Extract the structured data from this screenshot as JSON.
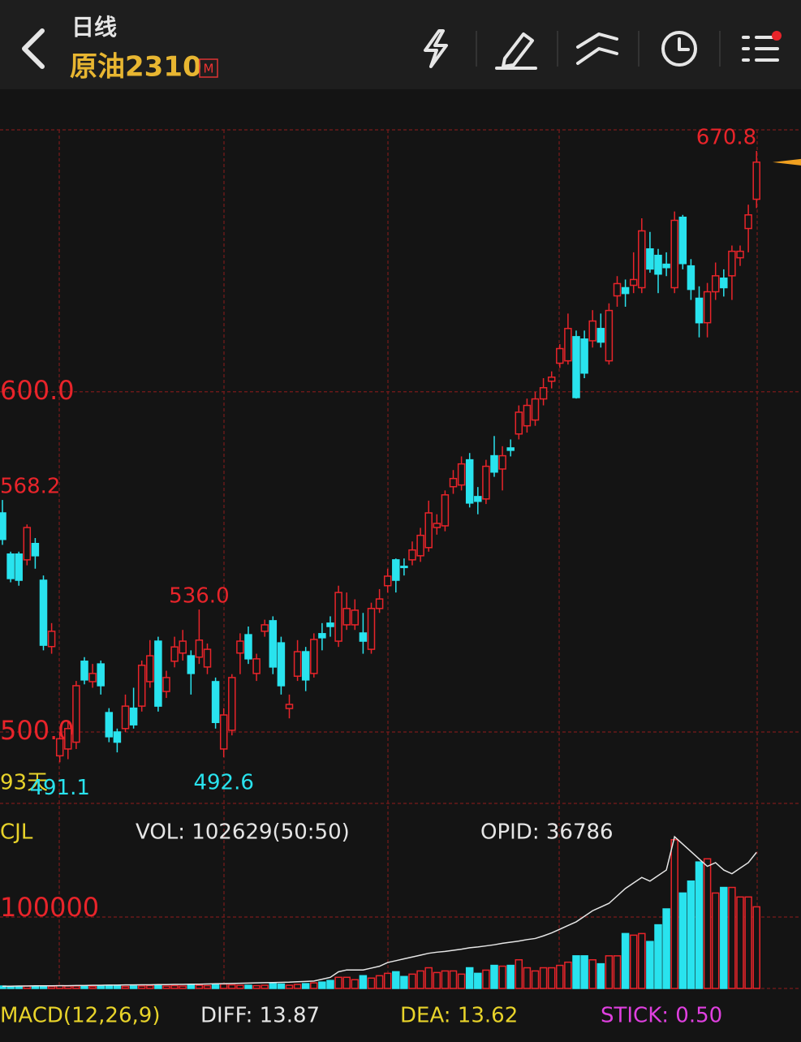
{
  "header": {
    "period": "日线",
    "symbol": "原油2310",
    "badge": "M"
  },
  "chart_data": [
    {
      "type": "candlestick",
      "period_label": "93天",
      "open": [
        564.4,
        552.3,
        552.3,
        550.6,
        555.4,
        544.6,
        525.1,
        493,
        495,
        497,
        520.8,
        514.8,
        520,
        505.7,
        500,
        501,
        507,
        507.6,
        514.8,
        526.7,
        511.9,
        520.8,
        523.2,
        522.4,
        522,
        519.1,
        514.8,
        495,
        500.5,
        523.2,
        528.6,
        517.2,
        529.6,
        532.7,
        526.2,
        506.9,
        516.4,
        523.6,
        517.2,
        528.9,
        532,
        526.7,
        531.5,
        531.5,
        529.1,
        524.3,
        536.3,
        543,
        550.6,
        548.7,
        550.6,
        551.8,
        554.2,
        560.1,
        560.6,
        572.1,
        572.6,
        580,
        569.2,
        568.5,
        581.2,
        577.3,
        583.5,
        587.6,
        590,
        591.7,
        597.9,
        603.1,
        608.4,
        609.1,
        616.2,
        615.5,
        615,
        618.6,
        609.1,
        628.2,
        630.6,
        631.3,
        630.6,
        642,
        640.1,
        637.5,
        630.6,
        651.3,
        637,
        627.5,
        620.3,
        629.4,
        633.4,
        634.1,
        639.4,
        648,
        656.6
      ],
      "high": [
        568.2,
        553,
        553,
        561,
        557,
        546,
        532,
        500,
        503,
        515,
        522,
        520,
        521,
        507,
        501,
        511,
        513,
        521,
        527,
        528,
        518,
        528,
        530,
        524,
        536,
        526,
        516,
        507,
        517,
        529,
        531,
        523,
        533,
        534,
        528,
        511,
        527,
        525,
        529,
        532,
        534,
        543,
        541,
        539,
        535,
        538,
        542,
        548,
        551,
        551,
        556,
        560,
        568,
        564,
        571,
        577,
        581,
        582,
        572,
        580,
        587,
        584,
        586,
        596,
        598,
        600,
        604,
        606,
        614,
        623,
        618,
        618,
        624,
        623,
        626,
        634,
        633,
        641,
        651,
        647,
        642,
        641,
        653,
        652,
        639,
        631,
        632,
        638,
        636,
        643,
        643,
        655,
        670.8
      ],
      "low": [
        555,
        544,
        543,
        549,
        548,
        524,
        523,
        491.1,
        492,
        495,
        514,
        513,
        511,
        497,
        494,
        500,
        501,
        506,
        513,
        506,
        510,
        519,
        521,
        511,
        520,
        517,
        501,
        492.6,
        499,
        517,
        520,
        515,
        528,
        517,
        511,
        504,
        515,
        512,
        516,
        524,
        528,
        525,
        530,
        530,
        523,
        523,
        535,
        541,
        541,
        546,
        549,
        550,
        553,
        558,
        559,
        570,
        571,
        566,
        564,
        567,
        575,
        571,
        581,
        586,
        588,
        590,
        596,
        601,
        607,
        608,
        598,
        604,
        613,
        613,
        608,
        625,
        625,
        629,
        629,
        635,
        629,
        634,
        629,
        636,
        627,
        616,
        616,
        627,
        628,
        627,
        637,
        641,
        654
      ],
      "close": [
        556.6,
        545.1,
        544.6,
        560.1,
        551.8,
        525.5,
        529.6,
        498,
        501,
        513.6,
        515.3,
        517.2,
        513.6,
        498.6,
        497,
        507.6,
        502.1,
        519.6,
        522.4,
        507.6,
        516,
        525,
        526.7,
        517.2,
        527,
        524.3,
        502.8,
        505,
        516,
        526.7,
        521.5,
        521.5,
        531.5,
        519.1,
        513.6,
        508.1,
        523.6,
        515.3,
        527.2,
        527.7,
        531,
        541,
        536.3,
        535.8,
        526.7,
        536.3,
        539.1,
        545.8,
        544.6,
        548.5,
        553.5,
        557.8,
        564.4,
        561.3,
        569.7,
        574.5,
        578.8,
        567.3,
        567.8,
        578.1,
        576.4,
        581.2,
        582.8,
        594,
        596,
        597.9,
        601.2,
        604.3,
        612.7,
        618.6,
        598.3,
        605.5,
        620.8,
        614.6,
        623.9,
        631.8,
        628.9,
        633,
        647.3,
        636.1,
        634.6,
        636.5,
        650.4,
        637.7,
        630.1,
        620.3,
        629.4,
        634.1,
        630.6,
        641.3,
        641.3,
        652,
        667.5
      ],
      "up_color": "#e8242a",
      "down_color": "#29e3ee",
      "annotations": [
        "568.2",
        "536.0",
        "670.8",
        "491.1",
        "492.6"
      ],
      "ylim": [
        479,
        677
      ],
      "yticks": [
        {
          "value": 600,
          "label": "600.0"
        },
        {
          "value": 500,
          "label": "500.0"
        }
      ],
      "grid": true
    },
    {
      "type": "bar",
      "title": "CJL",
      "vol_label": "VOL: 102629(50:50)",
      "opid_label": "OPID: 36786",
      "series": [
        {
          "values": [
            3000,
            2500,
            2500,
            3000,
            2500,
            3000,
            2500,
            3500,
            3000,
            3000,
            2500,
            2500,
            3000,
            3500,
            3000,
            2500,
            3000,
            3000,
            3500,
            4000,
            3000,
            3500,
            3000,
            4000,
            4000,
            3500,
            5000,
            5500,
            4500,
            4000,
            4000,
            3500,
            4000,
            6000,
            5500,
            4000,
            5000,
            6000,
            7000,
            8000,
            10000,
            14000,
            14000,
            11000,
            16000,
            13000,
            16000,
            19000,
            21000,
            15000,
            18000,
            22000,
            26000,
            20000,
            22000,
            22000,
            18000,
            26000,
            19000,
            23000,
            29000,
            28000,
            29000,
            36000,
            26000,
            22000,
            26000,
            26000,
            29000,
            33000,
            41000,
            41000,
            36000,
            31000,
            41000,
            41000,
            69000,
            67000,
            69000,
            59000,
            80000,
            100000,
            187000,
            120000,
            135000,
            159000,
            163000,
            120000,
            127000,
            127000,
            115000,
            115000,
            102629
          ]
        },
        {
          "axis": "y2",
          "color": "#e6e6e6",
          "values": [
            600,
            600,
            650,
            650,
            700,
            700,
            700,
            750,
            750,
            800,
            800,
            850,
            850,
            900,
            900,
            950,
            950,
            1000,
            1000,
            1050,
            1050,
            1100,
            1100,
            1150,
            1150,
            1200,
            1250,
            1300,
            1350,
            1400,
            1450,
            1500,
            1550,
            1600,
            1650,
            1700,
            1800,
            1900,
            2000,
            2500,
            3000,
            4500,
            5000,
            5000,
            5000,
            5500,
            6000,
            7000,
            7500,
            8000,
            8500,
            9000,
            9500,
            9800,
            10000,
            10300,
            10600,
            11000,
            11200,
            11500,
            11800,
            12200,
            12500,
            12800,
            13200,
            13500,
            14200,
            15000,
            16000,
            17000,
            18000,
            19500,
            21000,
            22000,
            23000,
            25000,
            27000,
            28500,
            30000,
            29000,
            30500,
            32000,
            41000,
            39000,
            37000,
            35000,
            33000,
            34000,
            32000,
            31000,
            32500,
            34000,
            36786
          ]
        }
      ],
      "ylim": [
        0,
        232650
      ],
      "yticks": [
        100000
      ],
      "y2lim": [
        0,
        50000
      ],
      "grid": true
    },
    {
      "type": "macd",
      "title": "MACD(12,26,9)",
      "diff_label": "DIFF: 13.87",
      "dea_label": "DEA: 13.62",
      "stick_label": "STICK: 0.50"
    }
  ]
}
